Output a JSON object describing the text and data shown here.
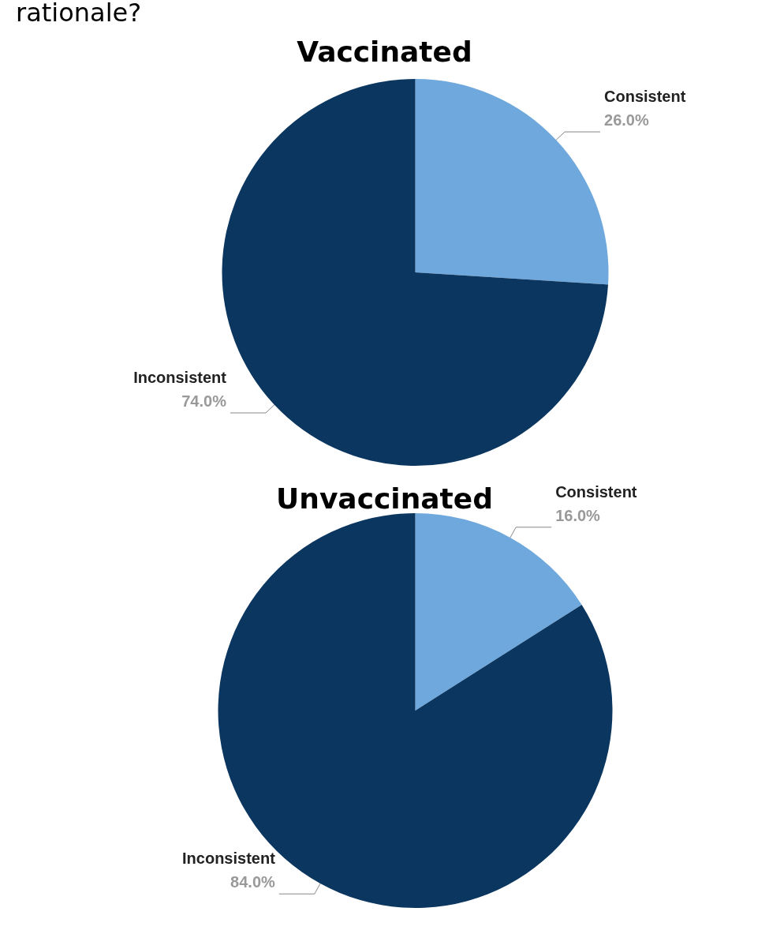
{
  "chart_data": [
    {
      "type": "pie",
      "title": "Vaccinated",
      "annotations": [
        "rationale?"
      ],
      "categories": [
        "Consistent",
        "Inconsistent"
      ],
      "values": [
        26,
        74
      ],
      "value_labels": [
        "26.0%",
        "74.0%"
      ],
      "colors": [
        "#6fa8dc",
        "#0b3660"
      ],
      "legend": false
    },
    {
      "type": "pie",
      "title": "Unvaccinated",
      "categories": [
        "Consistent",
        "Inconsistent"
      ],
      "values": [
        16,
        84
      ],
      "value_labels": [
        "16.0%",
        "84.0%"
      ],
      "colors": [
        "#6fa8dc",
        "#0b3660"
      ],
      "legend": false
    }
  ]
}
